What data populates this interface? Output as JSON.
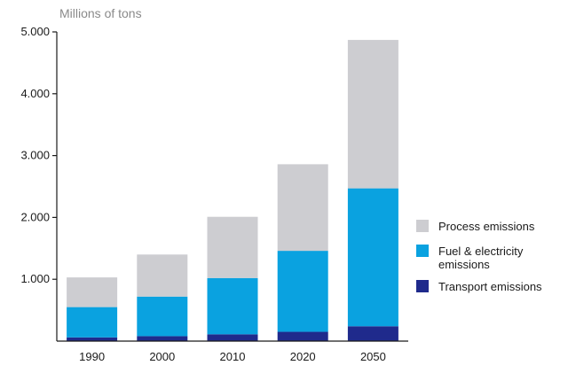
{
  "chart_data": {
    "type": "bar",
    "stacked": true,
    "unit_label": "Millions of tons",
    "categories": [
      "1990",
      "2000",
      "2010",
      "2020",
      "2050"
    ],
    "series": [
      {
        "name": "Transport emissions",
        "color": "#1f2a8c",
        "values": [
          60,
          80,
          110,
          150,
          240
        ]
      },
      {
        "name": "Fuel & electricity emissions",
        "color": "#0aa2e0",
        "values": [
          490,
          640,
          910,
          1310,
          2230
        ]
      },
      {
        "name": "Process emissions",
        "color": "#cdcdd1",
        "values": [
          480,
          680,
          990,
          1400,
          2400
        ]
      }
    ],
    "yticks": [
      "1.000",
      "2.000",
      "3.000",
      "4.000",
      "5.000"
    ],
    "ytick_values": [
      1000,
      2000,
      3000,
      4000,
      5000
    ],
    "ylim": [
      0,
      5000
    ],
    "grid": false,
    "legend": {
      "placement": "right",
      "items": [
        {
          "lines": [
            "Process emissions"
          ],
          "color": "#cdcdd1"
        },
        {
          "lines": [
            "Fuel & electricity",
            "emissions"
          ],
          "color": "#0aa2e0"
        },
        {
          "lines": [
            "Transport emissions"
          ],
          "color": "#1f2a8c"
        }
      ]
    }
  }
}
